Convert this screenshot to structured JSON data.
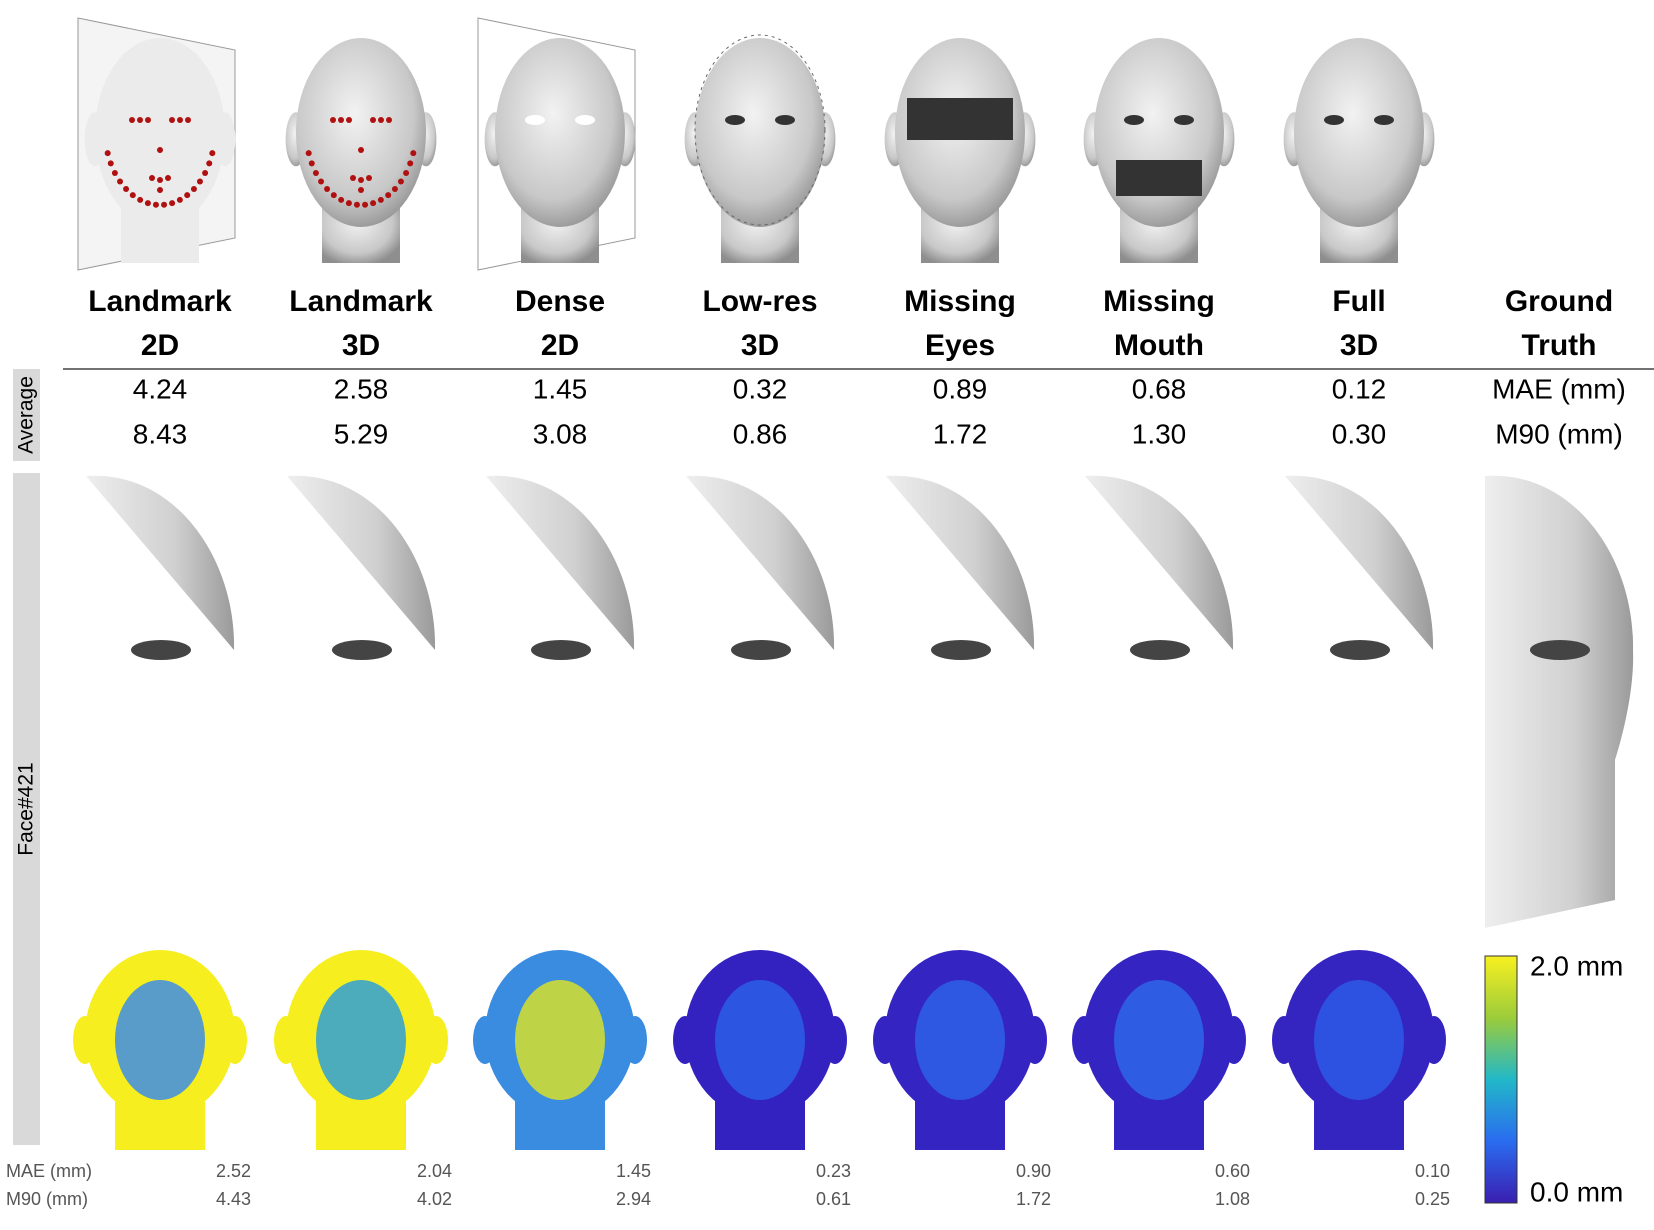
{
  "side_labels": {
    "average": "Average",
    "face": "Face#421"
  },
  "columns": [
    {
      "label": [
        "Landmark",
        "2D"
      ],
      "mae": "4.24",
      "m90": "8.43",
      "face_mae": "2.52",
      "face_m90": "4.43"
    },
    {
      "label": [
        "Landmark",
        "3D"
      ],
      "mae": "2.58",
      "m90": "5.29",
      "face_mae": "2.04",
      "face_m90": "4.02"
    },
    {
      "label": [
        "Dense",
        "2D"
      ],
      "mae": "1.45",
      "m90": "3.08",
      "face_mae": "1.45",
      "face_m90": "2.94"
    },
    {
      "label": [
        "Low-res",
        "3D"
      ],
      "mae": "0.32",
      "m90": "0.86",
      "face_mae": "0.23",
      "face_m90": "0.61"
    },
    {
      "label": [
        "Missing",
        "Eyes"
      ],
      "mae": "0.89",
      "m90": "1.72",
      "face_mae": "0.90",
      "face_m90": "1.72"
    },
    {
      "label": [
        "Missing",
        "Mouth"
      ],
      "mae": "0.68",
      "m90": "1.30",
      "face_mae": "0.60",
      "face_m90": "1.08"
    },
    {
      "label": [
        "Full",
        "3D"
      ],
      "mae": "0.12",
      "m90": "0.30",
      "face_mae": "0.10",
      "face_m90": "0.25"
    }
  ],
  "ground_truth": {
    "label": [
      "Ground",
      "Truth"
    ],
    "mae_label": "MAE (mm)",
    "m90_label": "M90 (mm)"
  },
  "face_metric_labels": [
    "MAE (mm)",
    "M90 (mm)"
  ],
  "colorbar": {
    "max_label": "2.0 mm",
    "min_label": "0.0 mm"
  }
}
